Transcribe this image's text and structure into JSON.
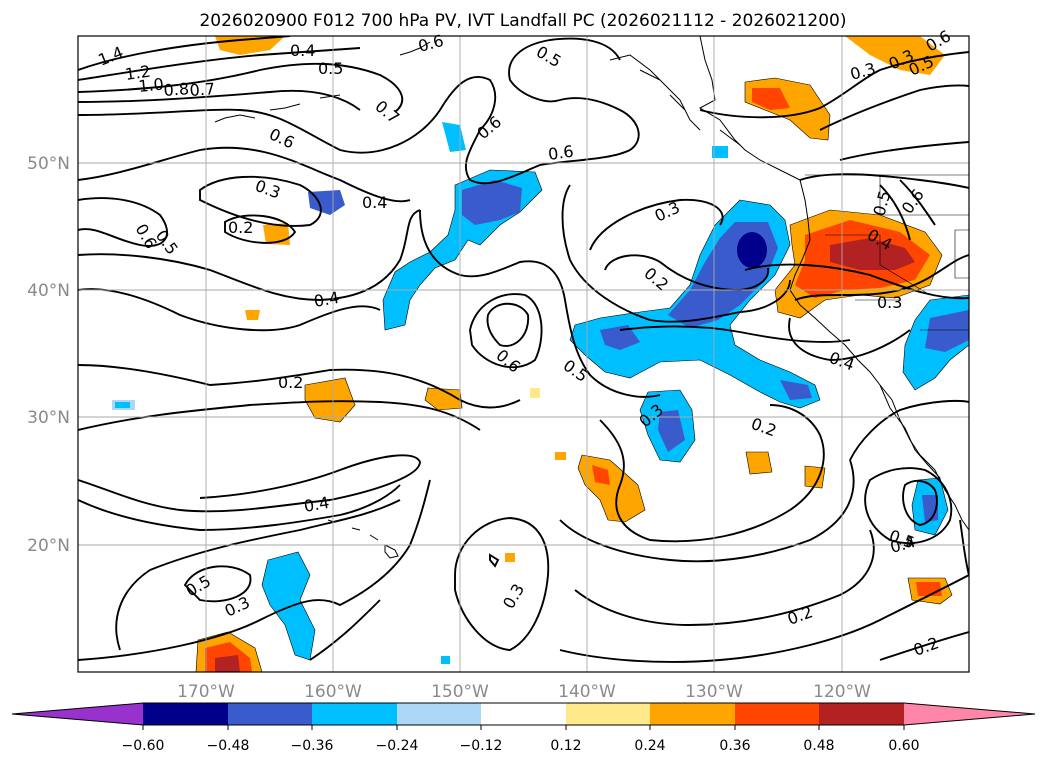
{
  "figure": {
    "title": "2026020900 F012 700 hPa PV, IVT Landfall PC (2026021112 - 2026021200)"
  },
  "map": {
    "lat_ticks": [
      "50°N",
      "40°N",
      "30°N",
      "20°N"
    ],
    "lon_ticks": [
      "170°W",
      "160°W",
      "150°W",
      "140°W",
      "130°W",
      "120°W"
    ],
    "contour_labels": [
      {
        "text": "1.4"
      },
      {
        "text": "1.2"
      },
      {
        "text": "1.0"
      },
      {
        "text": "0.8"
      },
      {
        "text": "0.7"
      },
      {
        "text": "0.4"
      },
      {
        "text": "0.5"
      },
      {
        "text": "0.6"
      },
      {
        "text": "0.5"
      },
      {
        "text": "0.7"
      },
      {
        "text": "0.6"
      },
      {
        "text": "0.6"
      },
      {
        "text": "0.6"
      },
      {
        "text": "0.3"
      },
      {
        "text": "0.4"
      },
      {
        "text": "0.2"
      },
      {
        "text": "0.6"
      },
      {
        "text": "0.5"
      },
      {
        "text": "0.3"
      },
      {
        "text": "0.2"
      },
      {
        "text": "0.4"
      },
      {
        "text": "0.6"
      },
      {
        "text": "0.5"
      },
      {
        "text": "0.2"
      },
      {
        "text": "0.3"
      },
      {
        "text": "0.2"
      },
      {
        "text": "0.4"
      },
      {
        "text": "0.5"
      },
      {
        "text": "0.3"
      },
      {
        "text": "0.3"
      },
      {
        "text": "0.2"
      },
      {
        "text": "0.2"
      },
      {
        "text": "0.3"
      },
      {
        "text": "0.4"
      },
      {
        "text": "0.4"
      },
      {
        "text": "0.3"
      },
      {
        "text": "0.5"
      },
      {
        "text": "0.4"
      },
      {
        "text": "0.5"
      },
      {
        "text": "0.6"
      },
      {
        "text": "0.3"
      },
      {
        "text": "0.5"
      },
      {
        "text": "0.6"
      }
    ]
  },
  "colorbar": {
    "colors": [
      "#9932cc",
      "#00008b",
      "#3a5bcc",
      "#00bfff",
      "#add8f5",
      "#ffffff",
      "#ffe98a",
      "#ffa500",
      "#ff4500",
      "#b22222",
      "#ff86a8"
    ],
    "tick_labels": [
      "−0.60",
      "−0.48",
      "−0.36",
      "−0.24",
      "−0.12",
      "0.12",
      "0.24",
      "0.36",
      "0.48",
      "0.60"
    ]
  }
}
